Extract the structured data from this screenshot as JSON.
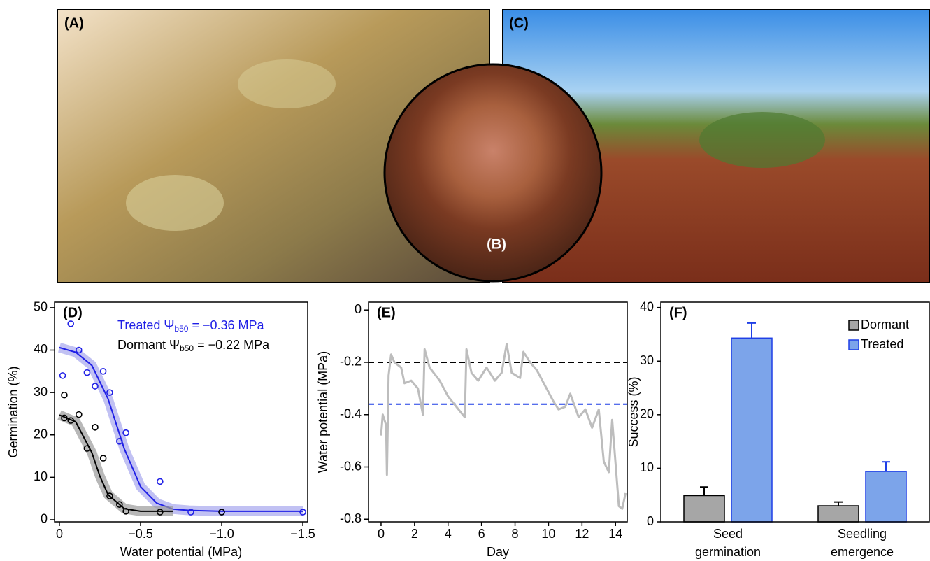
{
  "photos": {
    "a_label": "(A)",
    "b_label": "(B)",
    "c_label": "(C)"
  },
  "chart_data": [
    {
      "type": "scatter",
      "panel_label": "(D)",
      "xlabel": "Water potential (MPa)",
      "ylabel": "Germination (%)",
      "xlim": [
        0.03,
        -1.53
      ],
      "ylim": [
        -0.5,
        51.3
      ],
      "xticks": [
        0,
        {
          "value": -0.5,
          "label": "−0.5"
        },
        {
          "value": -1.0,
          "label": "−1.0"
        },
        {
          "value": -1.5,
          "label": "−1.5"
        }
      ],
      "yticks": [
        0,
        10,
        20,
        30,
        40,
        50
      ],
      "annotations": [
        {
          "text": "Treated Ψ",
          "sub": "b50",
          "rest": " = −0.36 MPa",
          "color": "#1f1fe6"
        },
        {
          "text": "Dormant Ψ",
          "sub": "b50",
          "rest": " = −0.22 MPa",
          "color": "#000000"
        }
      ],
      "series": [
        {
          "color": "#1f1fe6",
          "band_color": "#a7a7ee",
          "x": [
            -0.07,
            -0.02,
            -0.12,
            -0.17,
            -0.22,
            -0.27,
            -0.31,
            -0.37,
            -0.41,
            -0.62,
            -0.81,
            -1.0,
            -1.5
          ],
          "values": [
            46.2,
            34,
            40,
            34.7,
            31.5,
            35,
            30,
            18.5,
            20.5,
            9,
            1.8,
            1.8,
            1.8
          ],
          "fit_x": [
            0,
            -0.1,
            -0.2,
            -0.3,
            -0.4,
            -0.5,
            -0.6,
            -0.7,
            -0.8,
            -1.0,
            -1.5
          ],
          "fit_values": [
            40.6,
            39.5,
            36.4,
            28.5,
            16.7,
            7.8,
            3.9,
            2.5,
            2.2,
            2.0,
            2.0
          ]
        },
        {
          "color": "#000000",
          "band_color": "#9a9a9a",
          "x": [
            -0.03,
            -0.03,
            -0.07,
            -0.12,
            -0.17,
            -0.22,
            -0.27,
            -0.31,
            -0.37,
            -0.41,
            -0.62,
            -1.0
          ],
          "values": [
            29.4,
            24,
            23.4,
            24.8,
            16.8,
            21.8,
            14.5,
            5.6,
            3.6,
            2,
            1.8,
            1.8
          ],
          "fit_x": [
            0,
            -0.1,
            -0.2,
            -0.25,
            -0.3,
            -0.4,
            -0.5,
            -0.7
          ],
          "fit_values": [
            24.7,
            23.1,
            15.8,
            10.2,
            5.9,
            2.6,
            2.0,
            2.0
          ]
        }
      ]
    },
    {
      "type": "line",
      "panel_label": "(E)",
      "xlabel": "Day",
      "ylabel": "Water potential (MPa)",
      "xlim": [
        -0.75,
        14.7
      ],
      "ylim": [
        -0.81,
        0.03
      ],
      "xticks": [
        0,
        2,
        4,
        6,
        8,
        10,
        12,
        14
      ],
      "yticks": [
        0,
        -0.2,
        -0.4,
        -0.6,
        -0.8
      ],
      "hlines": [
        {
          "value": -0.2,
          "color": "#000000"
        },
        {
          "value": -0.36,
          "color": "#1f3fe6"
        }
      ],
      "color": "#bdbdbd",
      "x": [
        0,
        0.1,
        0.3,
        0.35,
        0.45,
        0.6,
        0.8,
        1.2,
        1.4,
        1.8,
        2.2,
        2.5,
        2.6,
        2.9,
        3.5,
        4.0,
        4.5,
        5.0,
        5.1,
        5.4,
        5.8,
        6.3,
        6.8,
        7.2,
        7.5,
        7.8,
        8.3,
        8.5,
        8.9,
        9.3,
        9.8,
        10.3,
        10.6,
        11.0,
        11.3,
        11.8,
        12.2,
        12.6,
        13.0,
        13.3,
        13.6,
        13.8,
        14.2,
        14.4,
        14.6
      ],
      "values": [
        -0.48,
        -0.4,
        -0.44,
        -0.63,
        -0.25,
        -0.17,
        -0.2,
        -0.22,
        -0.28,
        -0.27,
        -0.3,
        -0.4,
        -0.15,
        -0.22,
        -0.27,
        -0.33,
        -0.37,
        -0.41,
        -0.15,
        -0.24,
        -0.27,
        -0.22,
        -0.27,
        -0.24,
        -0.13,
        -0.24,
        -0.26,
        -0.16,
        -0.2,
        -0.23,
        -0.29,
        -0.35,
        -0.38,
        -0.37,
        -0.32,
        -0.41,
        -0.38,
        -0.45,
        -0.38,
        -0.58,
        -0.62,
        -0.42,
        -0.75,
        -0.76,
        -0.7
      ]
    },
    {
      "type": "bar",
      "panel_label": "(F)",
      "ylabel": "Success (%)",
      "ylim": [
        0,
        41
      ],
      "yticks": [
        0,
        10,
        20,
        30,
        40
      ],
      "categories": [
        "Seed germination",
        "Seedling emergence"
      ],
      "series": [
        {
          "name": "Dormant",
          "color": "#a6a6a6",
          "edge": "#000000",
          "values": [
            4.9,
            3.0
          ],
          "errors": [
            1.6,
            0.7
          ]
        },
        {
          "name": "Treated",
          "color": "#7ca4ea",
          "edge": "#1f3fe6",
          "values": [
            34.3,
            9.4
          ],
          "errors": [
            2.8,
            1.8
          ]
        }
      ]
    }
  ]
}
